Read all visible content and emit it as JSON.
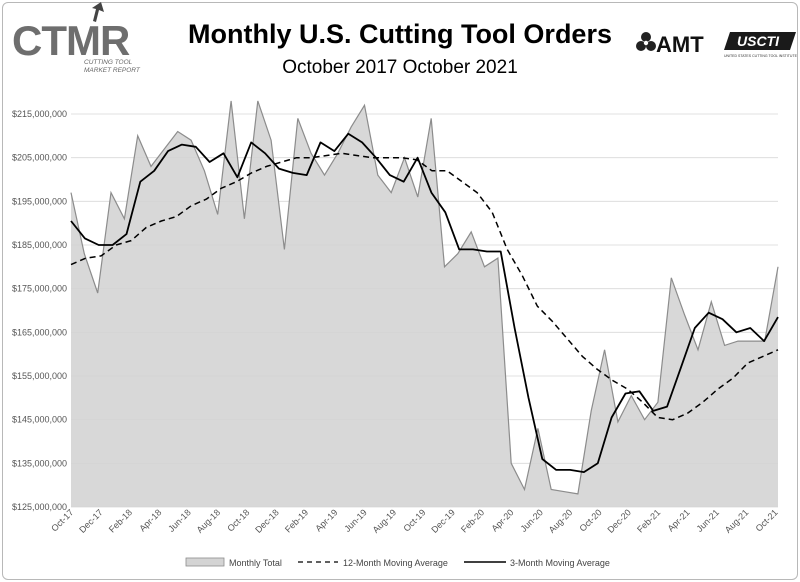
{
  "logos": {
    "ctmr": {
      "letters": "CTMR",
      "tagline_1": "CUTTING TOOL",
      "tagline_2": "MARKET REPORT",
      "icon": "ctmr-logo-icon"
    },
    "amt": {
      "text": "AMT",
      "icon": "amt-trefoil-icon"
    },
    "uscti": {
      "text": "USCTI",
      "tagline": "UNITED STATES CUTTING TOOL INSTITUTE"
    }
  },
  "colors": {
    "monthly_fill": "#d4d4d4",
    "monthly_line": "#8c8c8c",
    "average_line": "#000000"
  },
  "chart_data": {
    "type": "area",
    "title": "Monthly U.S. Cutting Tool Orders",
    "subtitle": "October 2017 October 2021",
    "xlabel": "",
    "ylabel": "",
    "ylim": [
      125000000,
      215000000
    ],
    "y_ticks": [
      "$125,000,000",
      "$135,000,000",
      "$145,000,000",
      "$155,000,000",
      "$165,000,000",
      "$175,000,000",
      "$185,000,000",
      "$195,000,000",
      "$205,000,000",
      "$215,000,000"
    ],
    "x_ticks": [
      "Oct-17",
      "Dec-17",
      "Feb-18",
      "Apr-18",
      "Jun-18",
      "Aug-18",
      "Oct-18",
      "Dec-18",
      "Feb-19",
      "Apr-19",
      "Jun-19",
      "Aug-19",
      "Oct-19",
      "Dec-19",
      "Feb-20",
      "Apr-20",
      "Jun-20",
      "Aug-20",
      "Oct-20",
      "Dec-20",
      "Feb-21",
      "Apr-21",
      "Jun-21",
      "Aug-21",
      "Oct-21"
    ],
    "grid": true,
    "legend_position": "bottom",
    "series": [
      {
        "name": "Monthly Total",
        "style": "area",
        "values": [
          197000000,
          183000000,
          174000000,
          197000000,
          191000000,
          210000000,
          203000000,
          207000000,
          211000000,
          209000000,
          202000000,
          192000000,
          218000000,
          191000000,
          218000000,
          209000000,
          184000000,
          214000000,
          206000000,
          201000000,
          206000000,
          212000000,
          217000000,
          201000000,
          197000000,
          205000000,
          196000000,
          214000000,
          180000000,
          183000000,
          188000000,
          180000000,
          182000000,
          135000000,
          129000000,
          143000000,
          129000000,
          128500000,
          128000000,
          147000000,
          161000000,
          144500000,
          150500000,
          145000000,
          149000000,
          177500000,
          169000000,
          161000000,
          172000000,
          162000000,
          163000000,
          163000000,
          163000000,
          180000000
        ]
      },
      {
        "name": "12-Month Moving Average",
        "style": "dashed",
        "values": [
          180500000,
          182000000,
          182500000,
          185000000,
          186000000,
          189000000,
          190500000,
          191500000,
          194000000,
          195500000,
          198000000,
          199500000,
          201500000,
          203000000,
          204000000,
          205000000,
          205000000,
          205500000,
          206000000,
          205500000,
          205000000,
          205000000,
          205000000,
          204500000,
          202000000,
          202000000,
          199500000,
          197000000,
          192500000,
          184000000,
          178000000,
          171000000,
          167500000,
          163500000,
          159500000,
          156500000,
          154000000,
          152000000,
          149000000,
          145500000,
          145000000,
          146500000,
          149000000,
          152000000,
          154500000,
          158000000,
          159500000,
          161000000
        ]
      },
      {
        "name": "3-Month Moving Average",
        "style": "solid",
        "values": [
          190500000,
          186500000,
          185000000,
          185000000,
          187500000,
          199500000,
          202000000,
          206500000,
          208000000,
          207500000,
          204000000,
          206000000,
          200500000,
          208500000,
          206000000,
          202500000,
          201500000,
          201000000,
          208500000,
          206500000,
          210500000,
          208500000,
          205000000,
          201000000,
          199500000,
          205000000,
          197000000,
          192500000,
          184000000,
          184000000,
          183500000,
          183500000,
          166000000,
          150000000,
          136000000,
          133500000,
          133500000,
          133000000,
          135000000,
          145500000,
          151000000,
          151500000,
          147000000,
          148000000,
          157000000,
          166000000,
          169500000,
          168000000,
          165000000,
          166000000,
          163000000,
          168500000
        ]
      }
    ]
  }
}
